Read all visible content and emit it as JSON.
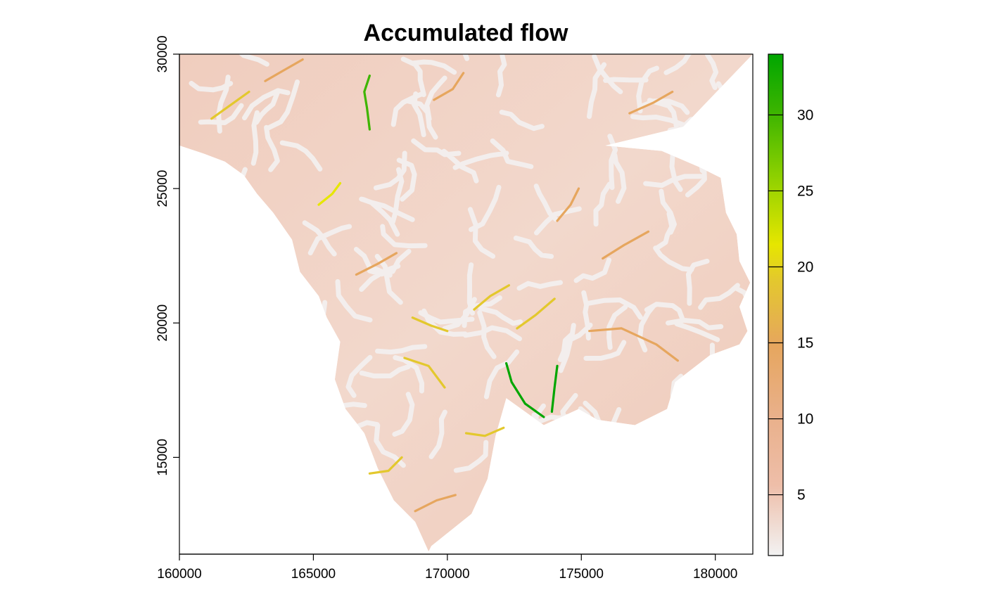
{
  "chart_data": {
    "type": "heatmap",
    "title": "Accumulated flow",
    "xlabel": "",
    "ylabel": "",
    "xlim": [
      160000,
      181400
    ],
    "ylim": [
      11400,
      30000
    ],
    "x_ticks": [
      160000,
      165000,
      170000,
      175000,
      180000
    ],
    "x_tick_labels": [
      "160000",
      "165000",
      "170000",
      "175000",
      "180000"
    ],
    "y_ticks": [
      15000,
      20000,
      25000,
      30000
    ],
    "y_tick_labels": [
      "15000",
      "20000",
      "25000",
      "30000"
    ],
    "colorbar": {
      "min": 1,
      "max": 34,
      "ticks": [
        5,
        10,
        15,
        20,
        25,
        30
      ],
      "tick_labels": [
        "5",
        "10",
        "15",
        "20",
        "25",
        "30"
      ],
      "colors": [
        "#f2f2f2",
        "#eebea9",
        "#e6a65e",
        "#e3c82d",
        "#e6e600",
        "#8bd000",
        "#3eb500",
        "#00a600"
      ],
      "placement": "right"
    },
    "grid": false,
    "domain_outline": [
      [
        160000,
        30000
      ],
      [
        181400,
        30000
      ],
      [
        178800,
        27300
      ],
      [
        175900,
        26600
      ],
      [
        178000,
        26400
      ],
      [
        179400,
        25800
      ],
      [
        180200,
        25400
      ],
      [
        180400,
        24100
      ],
      [
        180800,
        23300
      ],
      [
        180900,
        22300
      ],
      [
        181300,
        21500
      ],
      [
        180900,
        20600
      ],
      [
        181200,
        19700
      ],
      [
        180900,
        19200
      ],
      [
        179800,
        18800
      ],
      [
        178500,
        17800
      ],
      [
        178200,
        16800
      ],
      [
        177000,
        16200
      ],
      [
        175600,
        16400
      ],
      [
        174900,
        16800
      ],
      [
        173600,
        16200
      ],
      [
        172200,
        17200
      ],
      [
        171800,
        15800
      ],
      [
        171500,
        14200
      ],
      [
        170900,
        12900
      ],
      [
        169400,
        11700
      ],
      [
        169300,
        11500
      ],
      [
        168800,
        12600
      ],
      [
        168000,
        13400
      ],
      [
        167400,
        14600
      ],
      [
        166900,
        15900
      ],
      [
        166200,
        16800
      ],
      [
        165800,
        17900
      ],
      [
        166000,
        19300
      ],
      [
        165500,
        20200
      ],
      [
        165200,
        21000
      ],
      [
        164500,
        21900
      ],
      [
        164200,
        23100
      ],
      [
        163500,
        24100
      ],
      [
        162900,
        24800
      ],
      [
        162400,
        25500
      ],
      [
        161700,
        26000
      ],
      [
        160900,
        26300
      ],
      [
        160000,
        26600
      ]
    ],
    "channels": [
      {
        "value": 33,
        "points": [
          [
            173600,
            16500
          ],
          [
            172900,
            17000
          ],
          [
            172400,
            17800
          ],
          [
            172200,
            18500
          ]
        ]
      },
      {
        "value": 32,
        "points": [
          [
            173900,
            16700
          ],
          [
            174000,
            17600
          ],
          [
            174100,
            18400
          ]
        ]
      },
      {
        "value": 28,
        "points": [
          [
            167100,
            27200
          ],
          [
            167000,
            28000
          ],
          [
            166900,
            28600
          ],
          [
            167100,
            29200
          ]
        ]
      },
      {
        "value": 19,
        "points": [
          [
            165200,
            24400
          ],
          [
            165700,
            24800
          ],
          [
            166000,
            25200
          ]
        ]
      },
      {
        "value": 17,
        "points": [
          [
            171000,
            20500
          ],
          [
            171600,
            21000
          ],
          [
            172300,
            21400
          ]
        ]
      },
      {
        "value": 16,
        "points": [
          [
            168700,
            20200
          ],
          [
            169400,
            19900
          ],
          [
            170000,
            19700
          ]
        ]
      },
      {
        "value": 15,
        "points": [
          [
            170700,
            15900
          ],
          [
            171400,
            15800
          ],
          [
            172100,
            16100
          ]
        ]
      },
      {
        "value": 15,
        "points": [
          [
            167100,
            14400
          ],
          [
            167800,
            14500
          ],
          [
            168300,
            15000
          ]
        ]
      },
      {
        "value": 14,
        "points": [
          [
            172600,
            19800
          ],
          [
            173300,
            20300
          ],
          [
            174000,
            20900
          ]
        ]
      },
      {
        "value": 14,
        "points": [
          [
            168400,
            18700
          ],
          [
            169300,
            18400
          ],
          [
            169900,
            17600
          ]
        ]
      },
      {
        "value": 13,
        "points": [
          [
            161200,
            27600
          ],
          [
            161900,
            28100
          ],
          [
            162600,
            28600
          ]
        ]
      },
      {
        "value": 12,
        "points": [
          [
            163200,
            29000
          ],
          [
            163900,
            29400
          ],
          [
            164600,
            29800
          ]
        ]
      },
      {
        "value": 12,
        "points": [
          [
            175300,
            19700
          ],
          [
            176500,
            19800
          ],
          [
            177800,
            19200
          ],
          [
            178600,
            18600
          ]
        ]
      },
      {
        "value": 11,
        "points": [
          [
            175800,
            22400
          ],
          [
            176600,
            22900
          ],
          [
            177500,
            23400
          ]
        ]
      },
      {
        "value": 11,
        "points": [
          [
            168800,
            13000
          ],
          [
            169600,
            13400
          ],
          [
            170300,
            13600
          ]
        ]
      },
      {
        "value": 10,
        "points": [
          [
            169500,
            28300
          ],
          [
            170200,
            28700
          ],
          [
            170600,
            29300
          ]
        ]
      },
      {
        "value": 10,
        "points": [
          [
            174100,
            23800
          ],
          [
            174600,
            24400
          ],
          [
            174900,
            25000
          ]
        ]
      },
      {
        "value": 9,
        "points": [
          [
            166600,
            21800
          ],
          [
            167400,
            22200
          ],
          [
            168100,
            22600
          ]
        ]
      },
      {
        "value": 9,
        "points": [
          [
            176800,
            27800
          ],
          [
            177700,
            28200
          ],
          [
            178400,
            28600
          ]
        ]
      }
    ]
  }
}
